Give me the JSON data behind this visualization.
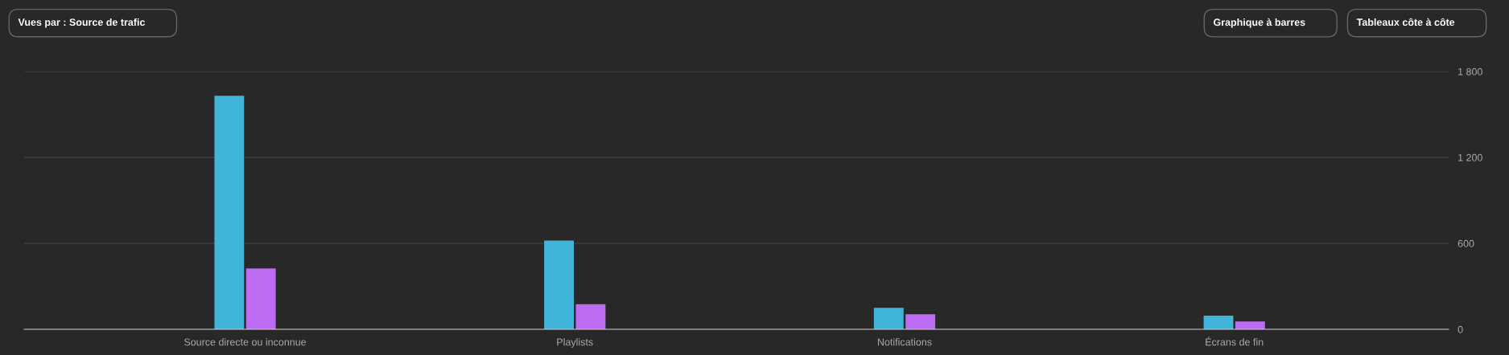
{
  "chart_data": {
    "type": "bar",
    "categories": [
      "Source directe ou inconnue",
      "Playlists",
      "Notifications",
      "Écrans de fin"
    ],
    "series": [
      {
        "color": "#41b4d9",
        "values": [
          1630,
          620,
          150,
          95
        ]
      },
      {
        "color": "#bc6cf2",
        "values": [
          425,
          175,
          105,
          55
        ]
      }
    ],
    "ylim": [
      0,
      1800
    ],
    "yticks": [
      0,
      600,
      {
        "value": 1200,
        "label": "1 200"
      },
      {
        "value": 1800,
        "label": "1 800"
      }
    ],
    "grid": "y",
    "annotations": [
      "Vues par : Source de trafic",
      "Graphique à barres",
      "Tableaux côte à côte"
    ]
  }
}
